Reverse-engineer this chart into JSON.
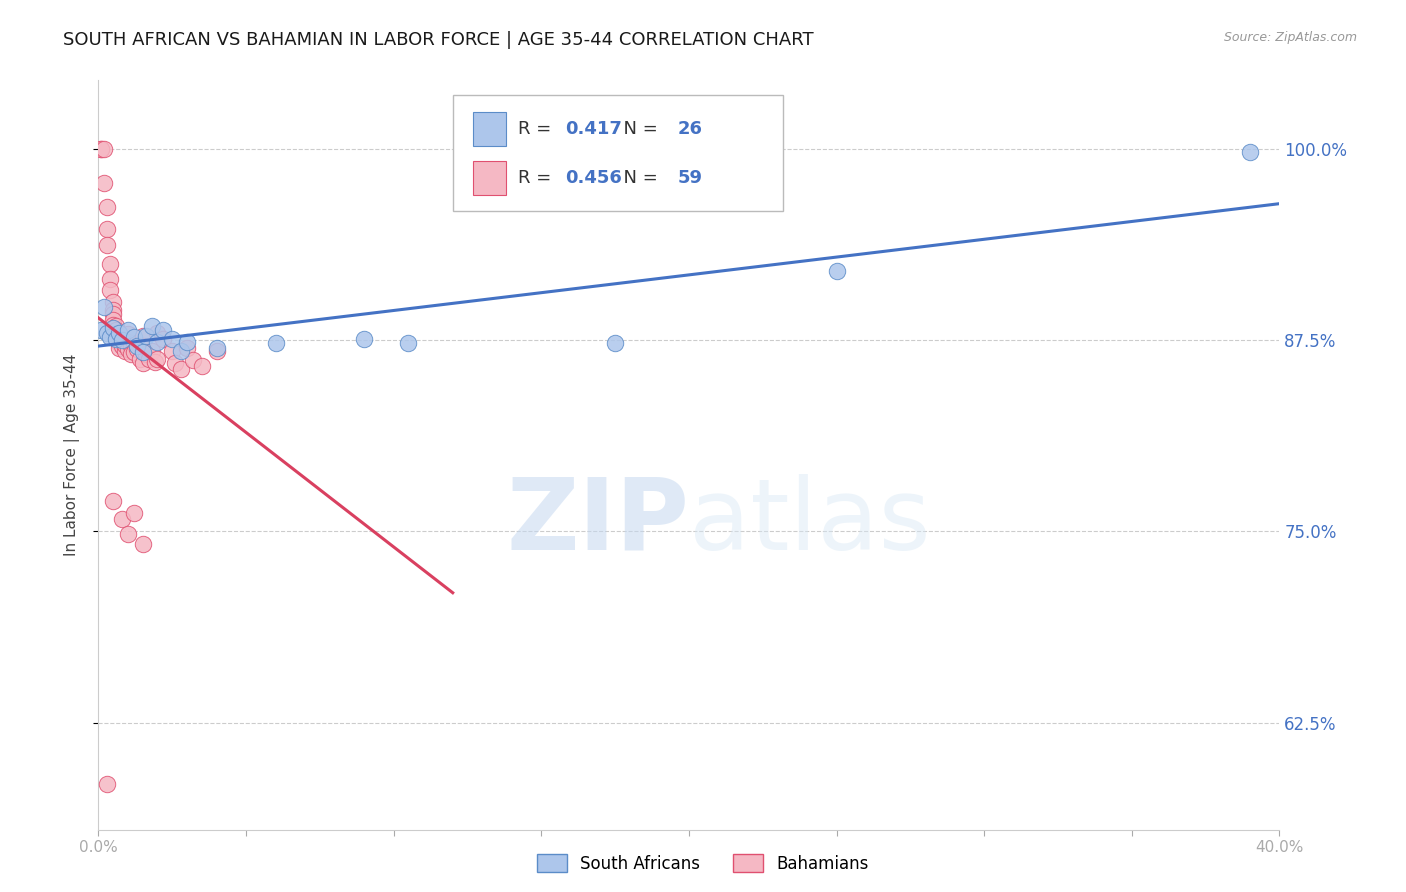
{
  "title": "SOUTH AFRICAN VS BAHAMIAN IN LABOR FORCE | AGE 35-44 CORRELATION CHART",
  "source": "Source: ZipAtlas.com",
  "ylabel": "In Labor Force | Age 35-44",
  "xlim": [
    0.0,
    0.4
  ],
  "ylim": [
    0.555,
    1.045
  ],
  "xticks": [
    0.0,
    0.05,
    0.1,
    0.15,
    0.2,
    0.25,
    0.3,
    0.35,
    0.4
  ],
  "xticklabels": [
    "0.0%",
    "",
    "",
    "",
    "",
    "",
    "",
    "",
    "40.0%"
  ],
  "yticks": [
    0.625,
    0.75,
    0.875,
    1.0
  ],
  "yticklabels": [
    "62.5%",
    "75.0%",
    "87.5%",
    "100.0%"
  ],
  "blue_R": 0.417,
  "blue_N": 26,
  "pink_R": 0.456,
  "pink_N": 59,
  "blue_color": "#adc6eb",
  "pink_color": "#f5b8c4",
  "blue_edge_color": "#5b8cc8",
  "pink_edge_color": "#e05070",
  "blue_line_color": "#4472c4",
  "pink_line_color": "#d94060",
  "legend_blue_label": "South Africans",
  "legend_pink_label": "Bahamians",
  "watermark_zip": "ZIP",
  "watermark_atlas": "atlas",
  "right_tick_color": "#4472c4",
  "south_african_data": [
    [
      0.001,
      0.882
    ],
    [
      0.002,
      0.897
    ],
    [
      0.003,
      0.88
    ],
    [
      0.004,
      0.877
    ],
    [
      0.005,
      0.883
    ],
    [
      0.006,
      0.876
    ],
    [
      0.007,
      0.88
    ],
    [
      0.008,
      0.875
    ],
    [
      0.01,
      0.882
    ],
    [
      0.012,
      0.877
    ],
    [
      0.013,
      0.871
    ],
    [
      0.015,
      0.867
    ],
    [
      0.016,
      0.878
    ],
    [
      0.018,
      0.884
    ],
    [
      0.02,
      0.874
    ],
    [
      0.022,
      0.882
    ],
    [
      0.025,
      0.876
    ],
    [
      0.028,
      0.868
    ],
    [
      0.03,
      0.874
    ],
    [
      0.04,
      0.87
    ],
    [
      0.06,
      0.873
    ],
    [
      0.09,
      0.876
    ],
    [
      0.105,
      0.873
    ],
    [
      0.175,
      0.873
    ],
    [
      0.25,
      0.92
    ],
    [
      0.39,
      0.998
    ]
  ],
  "bahamian_data": [
    [
      0.001,
      1.0
    ],
    [
      0.001,
      1.0
    ],
    [
      0.002,
      1.0
    ],
    [
      0.002,
      0.978
    ],
    [
      0.003,
      0.962
    ],
    [
      0.003,
      0.948
    ],
    [
      0.003,
      0.937
    ],
    [
      0.004,
      0.925
    ],
    [
      0.004,
      0.915
    ],
    [
      0.004,
      0.908
    ],
    [
      0.005,
      0.9
    ],
    [
      0.005,
      0.895
    ],
    [
      0.005,
      0.892
    ],
    [
      0.005,
      0.888
    ],
    [
      0.005,
      0.885
    ],
    [
      0.006,
      0.884
    ],
    [
      0.006,
      0.882
    ],
    [
      0.006,
      0.879
    ],
    [
      0.006,
      0.876
    ],
    [
      0.007,
      0.876
    ],
    [
      0.007,
      0.875
    ],
    [
      0.007,
      0.873
    ],
    [
      0.007,
      0.87
    ],
    [
      0.008,
      0.874
    ],
    [
      0.008,
      0.871
    ],
    [
      0.009,
      0.868
    ],
    [
      0.009,
      0.872
    ],
    [
      0.01,
      0.879
    ],
    [
      0.01,
      0.874
    ],
    [
      0.01,
      0.869
    ],
    [
      0.011,
      0.871
    ],
    [
      0.011,
      0.866
    ],
    [
      0.012,
      0.873
    ],
    [
      0.012,
      0.867
    ],
    [
      0.013,
      0.869
    ],
    [
      0.014,
      0.863
    ],
    [
      0.015,
      0.878
    ],
    [
      0.015,
      0.871
    ],
    [
      0.015,
      0.86
    ],
    [
      0.016,
      0.866
    ],
    [
      0.017,
      0.863
    ],
    [
      0.018,
      0.868
    ],
    [
      0.019,
      0.861
    ],
    [
      0.02,
      0.88
    ],
    [
      0.02,
      0.863
    ],
    [
      0.022,
      0.876
    ],
    [
      0.025,
      0.868
    ],
    [
      0.026,
      0.86
    ],
    [
      0.028,
      0.856
    ],
    [
      0.03,
      0.87
    ],
    [
      0.032,
      0.862
    ],
    [
      0.035,
      0.858
    ],
    [
      0.04,
      0.868
    ],
    [
      0.005,
      0.77
    ],
    [
      0.008,
      0.758
    ],
    [
      0.01,
      0.748
    ],
    [
      0.012,
      0.762
    ],
    [
      0.015,
      0.742
    ],
    [
      0.003,
      0.585
    ]
  ],
  "blue_trendline": [
    0.0,
    0.4
  ],
  "pink_trendline_x": [
    0.0,
    0.12
  ]
}
